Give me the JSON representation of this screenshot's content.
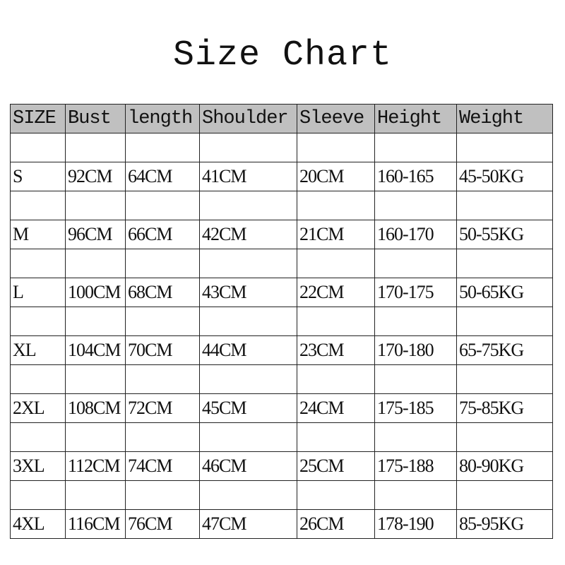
{
  "title": "Size Chart",
  "header_color": "#c0c0c0",
  "columns": [
    "SIZE",
    "Bust",
    "length",
    "Shoulder",
    "Sleeve",
    "Height",
    "Weight"
  ],
  "rows": [
    [
      "S",
      "92CM",
      "64CM",
      "41CM",
      "20CM",
      "160-165",
      "45-50KG"
    ],
    [
      "M",
      "96CM",
      "66CM",
      "42CM",
      "21CM",
      "160-170",
      "50-55KG"
    ],
    [
      "L",
      "100CM",
      "68CM",
      "43CM",
      "22CM",
      "170-175",
      "50-65KG"
    ],
    [
      "XL",
      "104CM",
      "70CM",
      "44CM",
      "23CM",
      "170-180",
      "65-75KG"
    ],
    [
      "2XL",
      "108CM",
      "72CM",
      "45CM",
      "24CM",
      "175-185",
      "75-85KG"
    ],
    [
      "3XL",
      "112CM",
      "74CM",
      "46CM",
      "25CM",
      "175-188",
      "80-90KG"
    ],
    [
      "4XL",
      "116CM",
      "76CM",
      "47CM",
      "26CM",
      "178-190",
      "85-95KG"
    ]
  ]
}
